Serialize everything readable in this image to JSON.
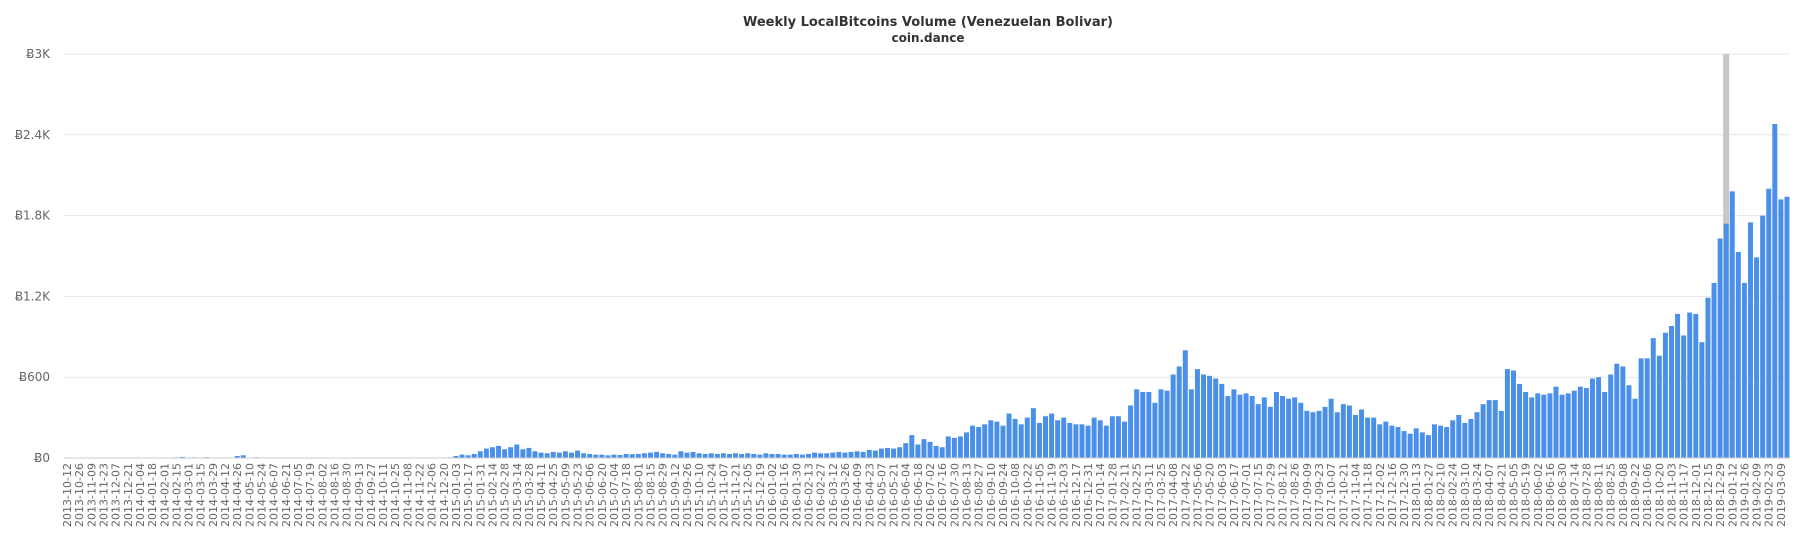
{
  "chart_data": {
    "type": "bar",
    "title": "Weekly LocalBitcoins Volume (Venezuelan Bolivar)",
    "subtitle": "coin.dance",
    "xlabel": "",
    "ylabel": "",
    "ylim": [
      0,
      3000
    ],
    "y_ticks": [
      0,
      600,
      1200,
      1800,
      2400,
      3000
    ],
    "y_tick_labels": [
      "Ƀ0",
      "Ƀ600",
      "Ƀ1.2K",
      "Ƀ1.8K",
      "Ƀ2.4K",
      "Ƀ3K"
    ],
    "grid": true,
    "legend": "none",
    "bar_color": "#4a90e8",
    "highlight_color": "#c8c8c8",
    "highlighted_week": "2019-01-05",
    "start_week": "2013-10-12",
    "x_label_every_weeks": 2,
    "series": [
      {
        "values": [
          0,
          0,
          0,
          0,
          0,
          0,
          0,
          0,
          0,
          0,
          0,
          0,
          0,
          0,
          0,
          0,
          0,
          0,
          5,
          8,
          3,
          5,
          4,
          6,
          2,
          3,
          2,
          2,
          15,
          20,
          2,
          5,
          3,
          2,
          2,
          2,
          2,
          2,
          2,
          2,
          1,
          1,
          1,
          1,
          1,
          1,
          1,
          1,
          1,
          1,
          1,
          1,
          1,
          1,
          1,
          1,
          1,
          1,
          1,
          1,
          1,
          1,
          2,
          5,
          15,
          25,
          20,
          30,
          50,
          70,
          80,
          90,
          65,
          80,
          100,
          65,
          75,
          50,
          40,
          35,
          45,
          40,
          50,
          40,
          55,
          35,
          30,
          25,
          25,
          20,
          25,
          22,
          30,
          28,
          30,
          35,
          40,
          45,
          35,
          30,
          25,
          50,
          40,
          45,
          35,
          30,
          35,
          30,
          35,
          30,
          35,
          30,
          35,
          30,
          25,
          35,
          30,
          30,
          25,
          25,
          30,
          25,
          30,
          40,
          35,
          35,
          40,
          45,
          40,
          45,
          50,
          45,
          60,
          55,
          70,
          75,
          70,
          80,
          110,
          170,
          100,
          140,
          120,
          90,
          80,
          160,
          150,
          160,
          190,
          240,
          230,
          250,
          280,
          270,
          240,
          330,
          290,
          250,
          300,
          370,
          260,
          310,
          330,
          280,
          300,
          260,
          250,
          250,
          240,
          300,
          280,
          240,
          310,
          310,
          270,
          390,
          510,
          490,
          490,
          410,
          510,
          500,
          620,
          680,
          800,
          510,
          660,
          620,
          610,
          590,
          550,
          460,
          510,
          470,
          480,
          460,
          400,
          450,
          380,
          490,
          460,
          440,
          450,
          410,
          350,
          340,
          350,
          380,
          440,
          340,
          400,
          390,
          320,
          360,
          300,
          300,
          250,
          270,
          240,
          230,
          200,
          180,
          220,
          190,
          170,
          250,
          240,
          230,
          280,
          320,
          260,
          290,
          340,
          400,
          430,
          430,
          350,
          660,
          650,
          550,
          490,
          450,
          480,
          470,
          480,
          530,
          470,
          480,
          500,
          530,
          520,
          590,
          600,
          490,
          620,
          700,
          680,
          540,
          440,
          740,
          740,
          890,
          760,
          930,
          980,
          1070,
          910,
          1080,
          1070,
          860,
          1190,
          1300,
          1630,
          1740,
          1980,
          1530,
          1300,
          1750,
          1490,
          1800,
          2000,
          2480,
          1920,
          1940
        ]
      }
    ]
  }
}
